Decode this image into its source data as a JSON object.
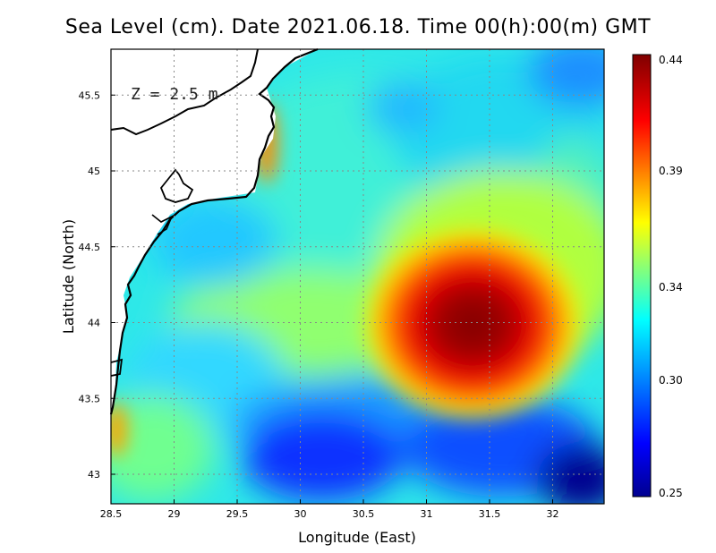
{
  "title": "Sea Level (cm). Date 2021.06.18. Time 00(h):00(m) GMT",
  "depth_label": "Z = 2.5 m",
  "chart_data": {
    "type": "heatmap",
    "title": "Sea Level (cm). Date 2021.06.18. Time 00(h):00(m) GMT",
    "xlabel": "Longitude (East)",
    "ylabel": "Latitude (North)",
    "xlim": [
      28.5,
      32.4
    ],
    "ylim": [
      42.8,
      45.8
    ],
    "x_ticks": [
      28.5,
      29,
      29.5,
      30,
      30.5,
      31,
      31.5,
      32
    ],
    "x_tick_labels": [
      "28.5",
      "29",
      "29.5",
      "30",
      "30.5",
      "31",
      "31.5",
      "32"
    ],
    "y_ticks": [
      43,
      43.5,
      44,
      44.5,
      45,
      45.5
    ],
    "y_tick_labels": [
      "43",
      "43.5",
      "44",
      "44.5",
      "45",
      "45.5"
    ],
    "grid": true,
    "colorbar": {
      "min": 0.25,
      "max": 0.44,
      "ticks": [
        0.25,
        0.3,
        0.34,
        0.39,
        0.44
      ],
      "tick_labels": [
        "0.25",
        "0.30",
        "0.34",
        "0.39",
        "0.44"
      ],
      "colors": [
        "#00008f",
        "#0000ff",
        "#00ffff",
        "#ffff00",
        "#ff0000",
        "#800000"
      ]
    },
    "features": [
      {
        "name": "high",
        "lon": 31.3,
        "lat": 44.0,
        "value": 0.44
      },
      {
        "name": "low-southeast",
        "lon": 32.3,
        "lat": 42.9,
        "value": 0.25
      },
      {
        "name": "low-south",
        "lon": 30.2,
        "lat": 43.1,
        "value": 0.27
      },
      {
        "name": "coastal-high-north",
        "lon": 29.75,
        "lat": 45.05,
        "value": 0.4
      },
      {
        "name": "coastal-high-southwest",
        "lon": 28.55,
        "lat": 43.3,
        "value": 0.38
      }
    ]
  }
}
